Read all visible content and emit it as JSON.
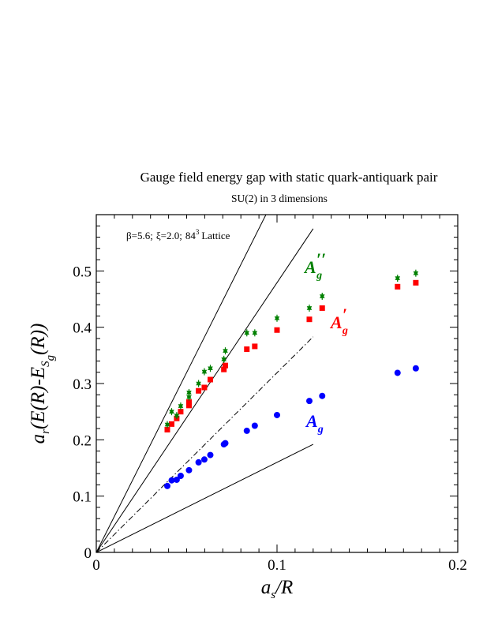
{
  "chart_data": {
    "type": "scatter",
    "title": "Gauge field energy gap with static quark-antiquark pair",
    "subtitle": "SU(2) in 3 dimensions",
    "xlabel": "a_s/R",
    "ylabel": "a_t(E(R)-E_S_g(R))",
    "xlim": [
      0,
      0.2
    ],
    "ylim": [
      0,
      0.6
    ],
    "x_ticks": [
      "0",
      "0.1",
      "0.2"
    ],
    "y_ticks": [
      "0",
      "0.1",
      "0.2",
      "0.3",
      "0.4",
      "0.5"
    ],
    "grid": false,
    "annotation": {
      "beta": "β=5.6;",
      "xi": "ξ=2.0;",
      "lattice": "84",
      "lattice_exp": "3",
      "lattice_word": "Lattice"
    },
    "series": [
      {
        "name": "A_g",
        "label_main": "A",
        "label_sub": "g",
        "label_prime": "",
        "color": "#0000ff",
        "marker": "circle",
        "x": [
          0.0393,
          0.0417,
          0.0445,
          0.0467,
          0.0513,
          0.0566,
          0.0598,
          0.0631,
          0.0706,
          0.0714,
          0.0833,
          0.0877,
          0.1,
          0.1179,
          0.125,
          0.1667,
          0.1768
        ],
        "y": [
          0.118,
          0.128,
          0.129,
          0.136,
          0.146,
          0.16,
          0.165,
          0.173,
          0.192,
          0.194,
          0.216,
          0.225,
          0.244,
          0.269,
          0.278,
          0.319,
          0.327
        ]
      },
      {
        "name": "A'_g",
        "label_main": "A",
        "label_sub": "g",
        "label_prime": "′",
        "color": "#ff0000",
        "marker": "square",
        "x": [
          0.0393,
          0.0417,
          0.0445,
          0.0467,
          0.0513,
          0.0513,
          0.0566,
          0.0598,
          0.0631,
          0.0706,
          0.0714,
          0.0833,
          0.0877,
          0.1,
          0.1179,
          0.125,
          0.1667,
          0.1768
        ],
        "y": [
          0.218,
          0.228,
          0.238,
          0.25,
          0.261,
          0.267,
          0.287,
          0.293,
          0.307,
          0.325,
          0.332,
          0.361,
          0.366,
          0.395,
          0.414,
          0.434,
          0.472,
          0.479
        ]
      },
      {
        "name": "A''_g",
        "label_main": "A",
        "label_sub": "g",
        "label_prime": "′′",
        "color": "#008000",
        "marker": "star",
        "x": [
          0.0393,
          0.0417,
          0.0445,
          0.0467,
          0.0513,
          0.0513,
          0.0566,
          0.0598,
          0.0631,
          0.0706,
          0.0714,
          0.0833,
          0.0877,
          0.1,
          0.1179,
          0.125,
          0.1667,
          0.1768
        ],
        "y": [
          0.227,
          0.25,
          0.243,
          0.26,
          0.276,
          0.284,
          0.3,
          0.321,
          0.327,
          0.343,
          0.358,
          0.39,
          0.39,
          0.416,
          0.434,
          0.455,
          0.487,
          0.496
        ]
      }
    ],
    "reference_lines": [
      {
        "style": "solid",
        "x": [
          0,
          0.12
        ],
        "y": [
          0,
          0.192
        ]
      },
      {
        "style": "dashdot",
        "x": [
          0,
          0.12
        ],
        "y": [
          0,
          0.383
        ]
      },
      {
        "style": "solid",
        "x": [
          0,
          0.12
        ],
        "y": [
          0,
          0.575
        ]
      },
      {
        "style": "solid",
        "x": [
          0,
          0.12
        ],
        "y": [
          0,
          0.767
        ]
      }
    ]
  }
}
